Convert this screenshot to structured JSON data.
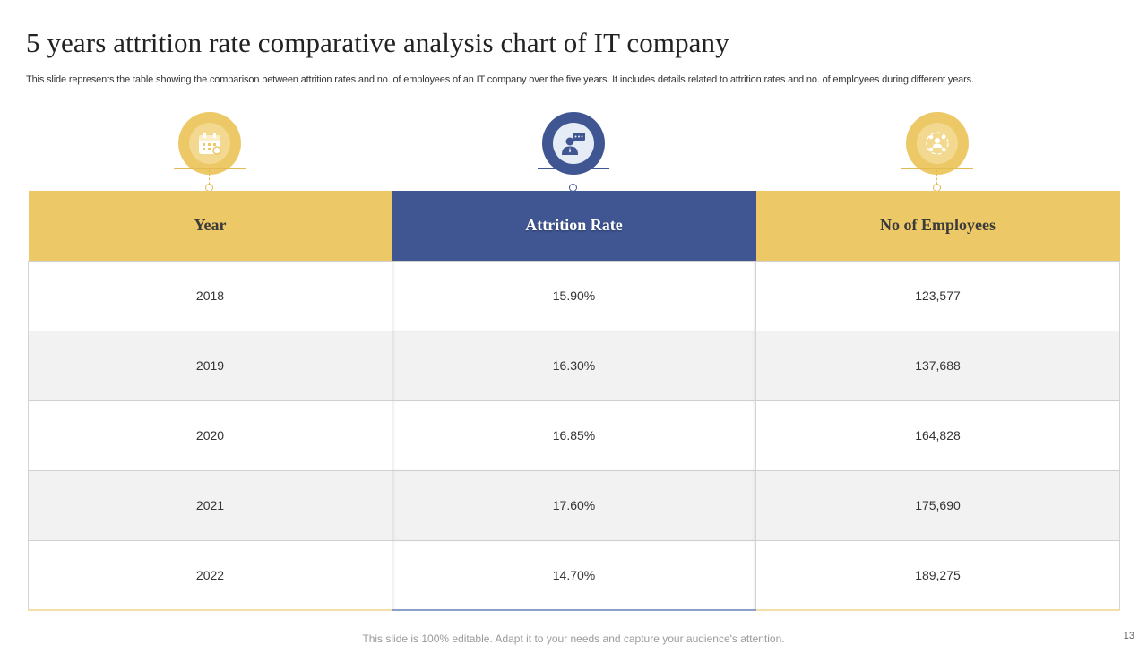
{
  "slide": {
    "title": "5 years attrition rate comparative analysis chart of IT company",
    "subtitle": "This slide represents the table showing the comparison between attrition rates and no. of employees of an IT company over the five years. It includes details related to attrition rates and no. of employees during different years.",
    "footer": "This slide is 100% editable. Adapt it to your needs and capture your audience's attention.",
    "page_number": "13"
  },
  "icons": {
    "year": "calendar-icon",
    "attrition": "person-message-icon",
    "employees": "team-network-icon"
  },
  "colors": {
    "accent_yellow": "#ecc866",
    "accent_blue": "#3f5693",
    "row_alt": "#f2f2f2"
  },
  "table": {
    "headers": [
      "Year",
      "Attrition Rate",
      "No of Employees"
    ],
    "rows": [
      [
        "2018",
        "15.90%",
        "123,577"
      ],
      [
        "2019",
        "16.30%",
        "137,688"
      ],
      [
        "2020",
        "16.85%",
        "164,828"
      ],
      [
        "2021",
        "17.60%",
        "175,690"
      ],
      [
        "2022",
        "14.70%",
        "189,275"
      ]
    ]
  }
}
